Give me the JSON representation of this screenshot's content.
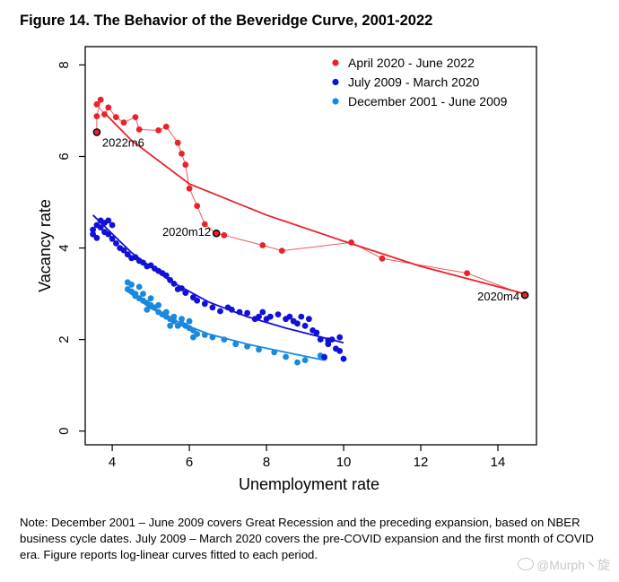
{
  "figure": {
    "title": "Figure 14. The Behavior of the Beveridge Curve, 2001-2022",
    "note": "Note: December 2001 – June 2009 covers Great Recession and the preceding expansion, based on NBER business cycle dates. July 2009 – March 2020 covers the pre-COVID expansion and the first month of COVID era. Figure reports log-linear curves fitted to each period."
  },
  "watermark": {
    "text": "@Murph丶旋"
  },
  "chart_data": {
    "type": "scatter",
    "title": "Figure 14. The Behavior of the Beveridge Curve, 2001-2022",
    "xlabel": "Unemployment rate",
    "ylabel": "Vacancy rate",
    "xlim": [
      3.3,
      15.0
    ],
    "ylim": [
      -0.3,
      8.4
    ],
    "xticks": [
      4,
      6,
      8,
      10,
      12,
      14
    ],
    "yticks": [
      0,
      2,
      4,
      6,
      8
    ],
    "legend_position": "top-right",
    "series": [
      {
        "name": "April 2020 - June 2022",
        "color": "#e8222b",
        "connected": true,
        "points": [
          [
            14.7,
            2.97
          ],
          [
            13.2,
            3.45
          ],
          [
            11.0,
            3.77
          ],
          [
            10.2,
            4.12
          ],
          [
            8.4,
            3.94
          ],
          [
            7.9,
            4.06
          ],
          [
            6.9,
            4.28
          ],
          [
            6.7,
            4.32
          ],
          [
            6.4,
            4.52
          ],
          [
            6.2,
            4.92
          ],
          [
            6.0,
            5.3
          ],
          [
            5.9,
            5.82
          ],
          [
            5.8,
            6.06
          ],
          [
            5.7,
            6.3
          ],
          [
            5.4,
            6.65
          ],
          [
            5.2,
            6.57
          ],
          [
            4.7,
            6.59
          ],
          [
            4.6,
            6.86
          ],
          [
            4.3,
            6.74
          ],
          [
            4.1,
            6.86
          ],
          [
            3.9,
            7.07
          ],
          [
            3.8,
            6.92
          ],
          [
            3.6,
            7.14
          ],
          [
            3.7,
            7.24
          ],
          [
            3.6,
            6.88
          ],
          [
            3.6,
            6.53
          ]
        ],
        "fit": [
          [
            14.7,
            3.0
          ],
          [
            12.0,
            3.6
          ],
          [
            10.0,
            4.15
          ],
          [
            8.0,
            4.72
          ],
          [
            6.0,
            5.4
          ],
          [
            4.5,
            6.35
          ],
          [
            3.8,
            6.95
          ]
        ],
        "highlights": [
          {
            "x": 3.6,
            "y": 6.53,
            "label": "2022m6"
          },
          {
            "x": 6.7,
            "y": 4.32,
            "label": "2020m12"
          },
          {
            "x": 14.7,
            "y": 2.97,
            "label": "2020m4"
          }
        ]
      },
      {
        "name": "July 2009 - March 2020",
        "color": "#1010d8",
        "connected": false,
        "points": [
          [
            10.0,
            1.58
          ],
          [
            9.9,
            1.75
          ],
          [
            9.8,
            1.8
          ],
          [
            9.9,
            2.05
          ],
          [
            9.7,
            2.0
          ],
          [
            9.6,
            1.98
          ],
          [
            9.5,
            1.62
          ],
          [
            9.6,
            1.9
          ],
          [
            9.4,
            2.0
          ],
          [
            9.3,
            2.15
          ],
          [
            9.2,
            2.2
          ],
          [
            9.0,
            2.3
          ],
          [
            9.1,
            2.45
          ],
          [
            8.9,
            2.5
          ],
          [
            8.8,
            2.35
          ],
          [
            8.7,
            2.4
          ],
          [
            8.6,
            2.5
          ],
          [
            8.5,
            2.45
          ],
          [
            8.3,
            2.55
          ],
          [
            8.1,
            2.5
          ],
          [
            8.0,
            2.45
          ],
          [
            7.9,
            2.6
          ],
          [
            7.8,
            2.5
          ],
          [
            7.7,
            2.45
          ],
          [
            7.5,
            2.58
          ],
          [
            7.3,
            2.6
          ],
          [
            7.1,
            2.65
          ],
          [
            7.0,
            2.7
          ],
          [
            6.8,
            2.62
          ],
          [
            6.6,
            2.7
          ],
          [
            6.4,
            2.78
          ],
          [
            6.2,
            2.85
          ],
          [
            6.1,
            2.92
          ],
          [
            5.9,
            3.02
          ],
          [
            5.8,
            3.12
          ],
          [
            5.7,
            3.1
          ],
          [
            5.6,
            3.22
          ],
          [
            5.5,
            3.3
          ],
          [
            5.4,
            3.4
          ],
          [
            5.3,
            3.45
          ],
          [
            5.2,
            3.5
          ],
          [
            5.1,
            3.55
          ],
          [
            5.0,
            3.62
          ],
          [
            4.9,
            3.6
          ],
          [
            4.8,
            3.68
          ],
          [
            4.7,
            3.72
          ],
          [
            4.6,
            3.8
          ],
          [
            4.5,
            3.78
          ],
          [
            4.4,
            3.86
          ],
          [
            4.3,
            3.95
          ],
          [
            4.2,
            4.0
          ],
          [
            4.1,
            4.1
          ],
          [
            4.0,
            4.2
          ],
          [
            3.9,
            4.3
          ],
          [
            3.8,
            4.35
          ],
          [
            3.7,
            4.45
          ],
          [
            3.6,
            4.5
          ],
          [
            3.5,
            4.4
          ],
          [
            3.6,
            4.22
          ],
          [
            3.7,
            4.6
          ],
          [
            3.8,
            4.55
          ],
          [
            3.9,
            4.6
          ],
          [
            4.0,
            4.5
          ],
          [
            3.5,
            4.3
          ]
        ],
        "fit": [
          [
            3.5,
            4.72
          ],
          [
            4.5,
            3.9
          ],
          [
            5.5,
            3.28
          ],
          [
            6.5,
            2.82
          ],
          [
            7.5,
            2.5
          ],
          [
            8.5,
            2.25
          ],
          [
            10.0,
            1.93
          ]
        ]
      },
      {
        "name": "December 2001 - June 2009",
        "color": "#1888e0",
        "connected": false,
        "points": [
          [
            9.5,
            1.6
          ],
          [
            9.4,
            1.65
          ],
          [
            9.0,
            1.55
          ],
          [
            8.8,
            1.5
          ],
          [
            8.5,
            1.62
          ],
          [
            8.2,
            1.72
          ],
          [
            7.8,
            1.78
          ],
          [
            7.5,
            1.85
          ],
          [
            7.2,
            1.9
          ],
          [
            6.9,
            2.0
          ],
          [
            6.6,
            2.05
          ],
          [
            6.4,
            2.1
          ],
          [
            6.2,
            2.12
          ],
          [
            6.1,
            2.2
          ],
          [
            6.0,
            2.25
          ],
          [
            5.9,
            2.3
          ],
          [
            5.8,
            2.35
          ],
          [
            5.7,
            2.3
          ],
          [
            5.6,
            2.4
          ],
          [
            5.5,
            2.45
          ],
          [
            5.4,
            2.5
          ],
          [
            5.3,
            2.55
          ],
          [
            5.2,
            2.6
          ],
          [
            5.1,
            2.7
          ],
          [
            5.0,
            2.75
          ],
          [
            4.9,
            2.8
          ],
          [
            4.8,
            2.85
          ],
          [
            4.7,
            2.9
          ],
          [
            4.6,
            2.95
          ],
          [
            4.5,
            3.05
          ],
          [
            4.4,
            3.1
          ],
          [
            4.5,
            3.2
          ],
          [
            4.6,
            3.0
          ],
          [
            4.7,
            3.15
          ],
          [
            4.8,
            3.0
          ],
          [
            5.0,
            2.9
          ],
          [
            5.2,
            2.75
          ],
          [
            5.4,
            2.6
          ],
          [
            5.6,
            2.5
          ],
          [
            5.8,
            2.45
          ],
          [
            6.0,
            2.4
          ],
          [
            4.4,
            3.25
          ],
          [
            4.9,
            2.65
          ],
          [
            5.5,
            2.3
          ],
          [
            6.1,
            2.05
          ]
        ],
        "fit": [
          [
            4.4,
            3.05
          ],
          [
            5.0,
            2.68
          ],
          [
            5.8,
            2.35
          ],
          [
            6.5,
            2.12
          ],
          [
            7.5,
            1.9
          ],
          [
            8.5,
            1.72
          ],
          [
            9.5,
            1.55
          ]
        ]
      }
    ]
  }
}
